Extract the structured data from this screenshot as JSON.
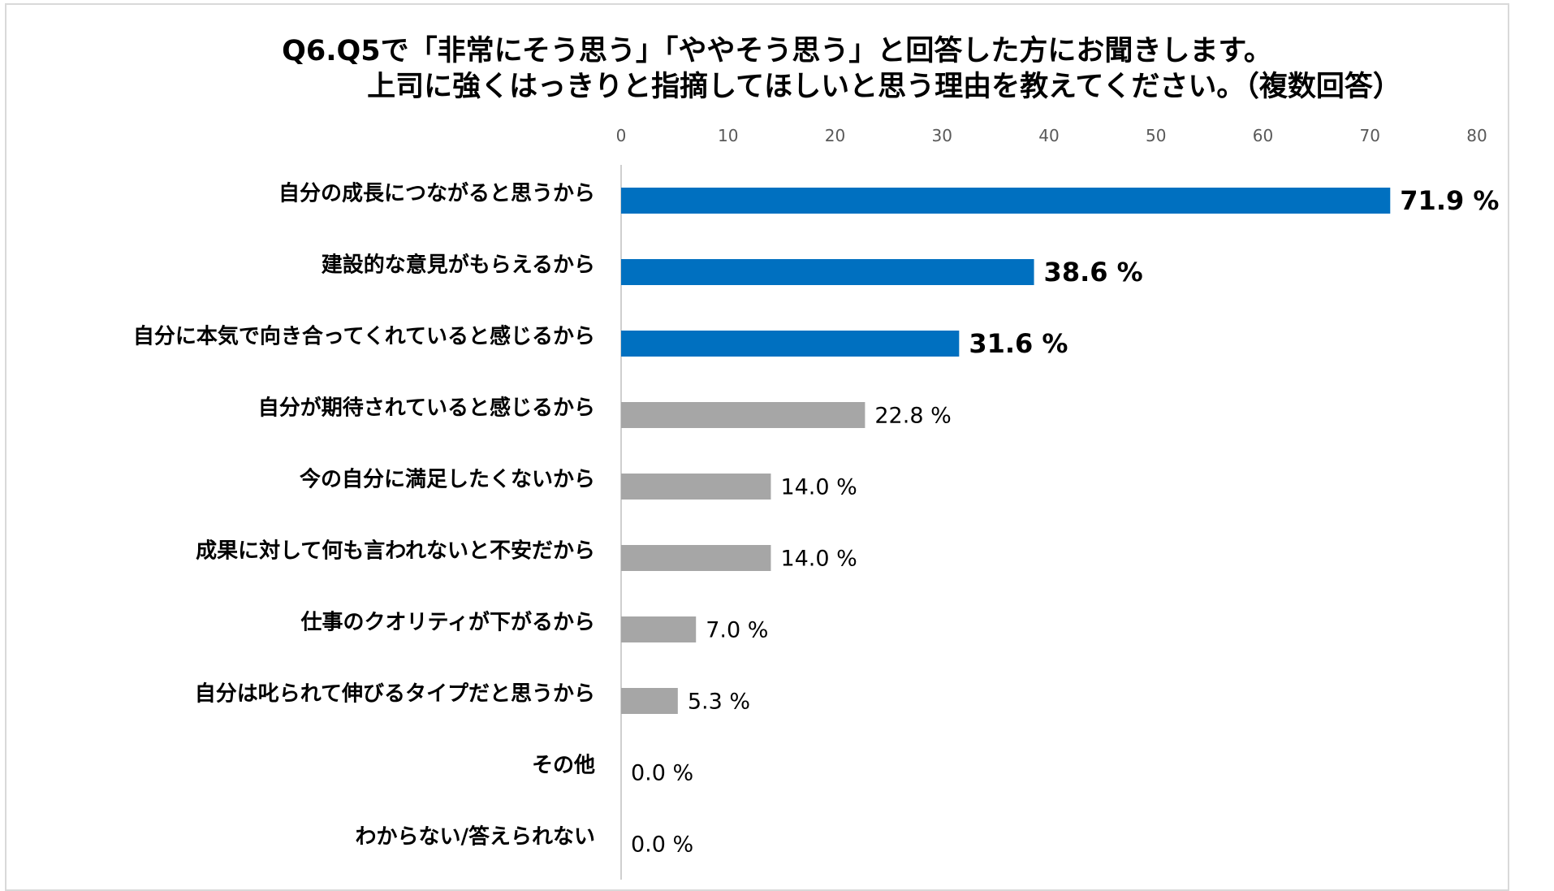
{
  "chart_data": {
    "type": "bar",
    "orientation": "horizontal",
    "title_line1": "Q6.Q5で「非常にそう思う」「ややそう思う」と回答した方にお聞きします。",
    "title_line2": "上司に強くはっきりと指摘してほしいと思う理由を教えてください。（複数回答）",
    "xlim": [
      0,
      80
    ],
    "ticks": [
      "0",
      "10",
      "20",
      "30",
      "40",
      "50",
      "60",
      "70",
      "80"
    ],
    "grid": false,
    "categories": [
      "自分の成長につながると思うから",
      "建設的な意見がもらえるから",
      "自分に本気で向き合ってくれていると感じるから",
      "自分が期待されていると感じるから",
      "今の自分に満足したくないから",
      "成果に対して何も言われないと不安だから",
      "仕事のクオリティが下がるから",
      "自分は叱られて伸びるタイプだと思うから",
      "その他",
      "わからない/答えられない"
    ],
    "values": [
      71.9,
      38.6,
      31.6,
      22.8,
      14.0,
      14.0,
      7.0,
      5.3,
      0.0,
      0.0
    ],
    "value_labels": [
      "71.9 %",
      "38.6 %",
      "31.6 %",
      "22.8 %",
      "14.0 %",
      "14.0 %",
      "7.0 %",
      "5.3 %",
      "0.0 %",
      "0.0 %"
    ],
    "highlight_count": 3,
    "colors": {
      "highlight": "#0070c0",
      "normal": "#a6a6a6",
      "axis": "#bfbfbf"
    }
  }
}
